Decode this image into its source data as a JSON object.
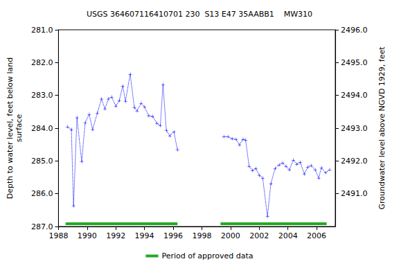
{
  "chart_data": {
    "type": "line",
    "title": "USGS 364607116410701 230  S13 E47 35AABB1    MW310",
    "x_label": "",
    "y_label": "Depth to water level, feet below land\nsurface",
    "y2_label": "Groundwater level above NGVD 1929, feet",
    "xlim": [
      1988,
      2007.3
    ],
    "xticks": [
      1988,
      1990,
      1992,
      1994,
      1996,
      1998,
      2000,
      2002,
      2004,
      2006
    ],
    "ylim": [
      281,
      287
    ],
    "yticks": [
      {
        "value": 281,
        "label": "281.0"
      },
      {
        "value": 282,
        "label": "282.0"
      },
      {
        "value": 283,
        "label": "283.0"
      },
      {
        "value": 284,
        "label": "284.0"
      },
      {
        "value": 285,
        "label": "285.0"
      },
      {
        "value": 286,
        "label": "286.0"
      },
      {
        "value": 287,
        "label": "287.0"
      }
    ],
    "y2lim": [
      2490,
      2496
    ],
    "y2ticks": [
      {
        "value": 2491,
        "label": "2491.0"
      },
      {
        "value": 2492,
        "label": "2492.0"
      },
      {
        "value": 2493,
        "label": "2493.0"
      },
      {
        "value": 2494,
        "label": "2494.0"
      },
      {
        "value": 2495,
        "label": "2495.0"
      },
      {
        "value": 2496,
        "label": "2496.0"
      }
    ],
    "grid": false,
    "legend": "bottom",
    "series": [
      {
        "color": "#0000ff",
        "marker": "plus",
        "line_style": "dotted",
        "x": [
          1988.62,
          1988.9,
          1989.05,
          1989.29,
          1989.62,
          1989.86,
          1990.14,
          1990.38,
          1990.71,
          1991.0,
          1991.24,
          1991.48,
          1991.71,
          1992.0,
          1992.24,
          1992.48,
          1992.67,
          1993.0,
          1993.29,
          1993.48,
          1993.76,
          1994.0,
          1994.29,
          1994.57,
          1994.86,
          1995.1,
          1995.29,
          1995.52,
          1995.76,
          1996.05,
          1996.29,
          1998.0,
          1999.52,
          1999.81,
          2000.1,
          2000.38,
          2000.62,
          2000.86,
          2001.05,
          2001.29,
          2001.52,
          2001.76,
          2002.0,
          2002.24,
          2002.57,
          2002.81,
          2003.1,
          2003.38,
          2003.62,
          2003.86,
          2004.1,
          2004.38,
          2004.62,
          2004.86,
          2005.14,
          2005.38,
          2005.62,
          2005.9,
          2006.14,
          2006.33,
          2006.62,
          2006.9
        ],
        "values": [
          283.96,
          284.04,
          286.37,
          283.68,
          285.02,
          283.83,
          283.58,
          284.04,
          283.54,
          283.11,
          283.41,
          283.11,
          283.05,
          283.33,
          283.16,
          282.71,
          283.18,
          282.35,
          283.37,
          283.47,
          283.24,
          283.35,
          283.62,
          283.64,
          283.85,
          283.92,
          282.67,
          284.07,
          284.23,
          284.11,
          284.66,
          null,
          284.26,
          284.26,
          284.32,
          284.34,
          284.51,
          284.34,
          284.36,
          285.16,
          285.29,
          285.23,
          285.44,
          285.52,
          286.69,
          285.69,
          285.23,
          285.12,
          285.06,
          285.16,
          285.27,
          284.97,
          285.1,
          285.04,
          285.4,
          285.19,
          285.14,
          285.27,
          285.52,
          285.21,
          285.36,
          285.27
        ]
      }
    ],
    "approved_periods": {
      "name": "Period of approved data",
      "color": "#22aa22",
      "ranges": [
        [
          1988.5,
          1996.3
        ],
        [
          1999.3,
          2006.7
        ]
      ]
    }
  }
}
